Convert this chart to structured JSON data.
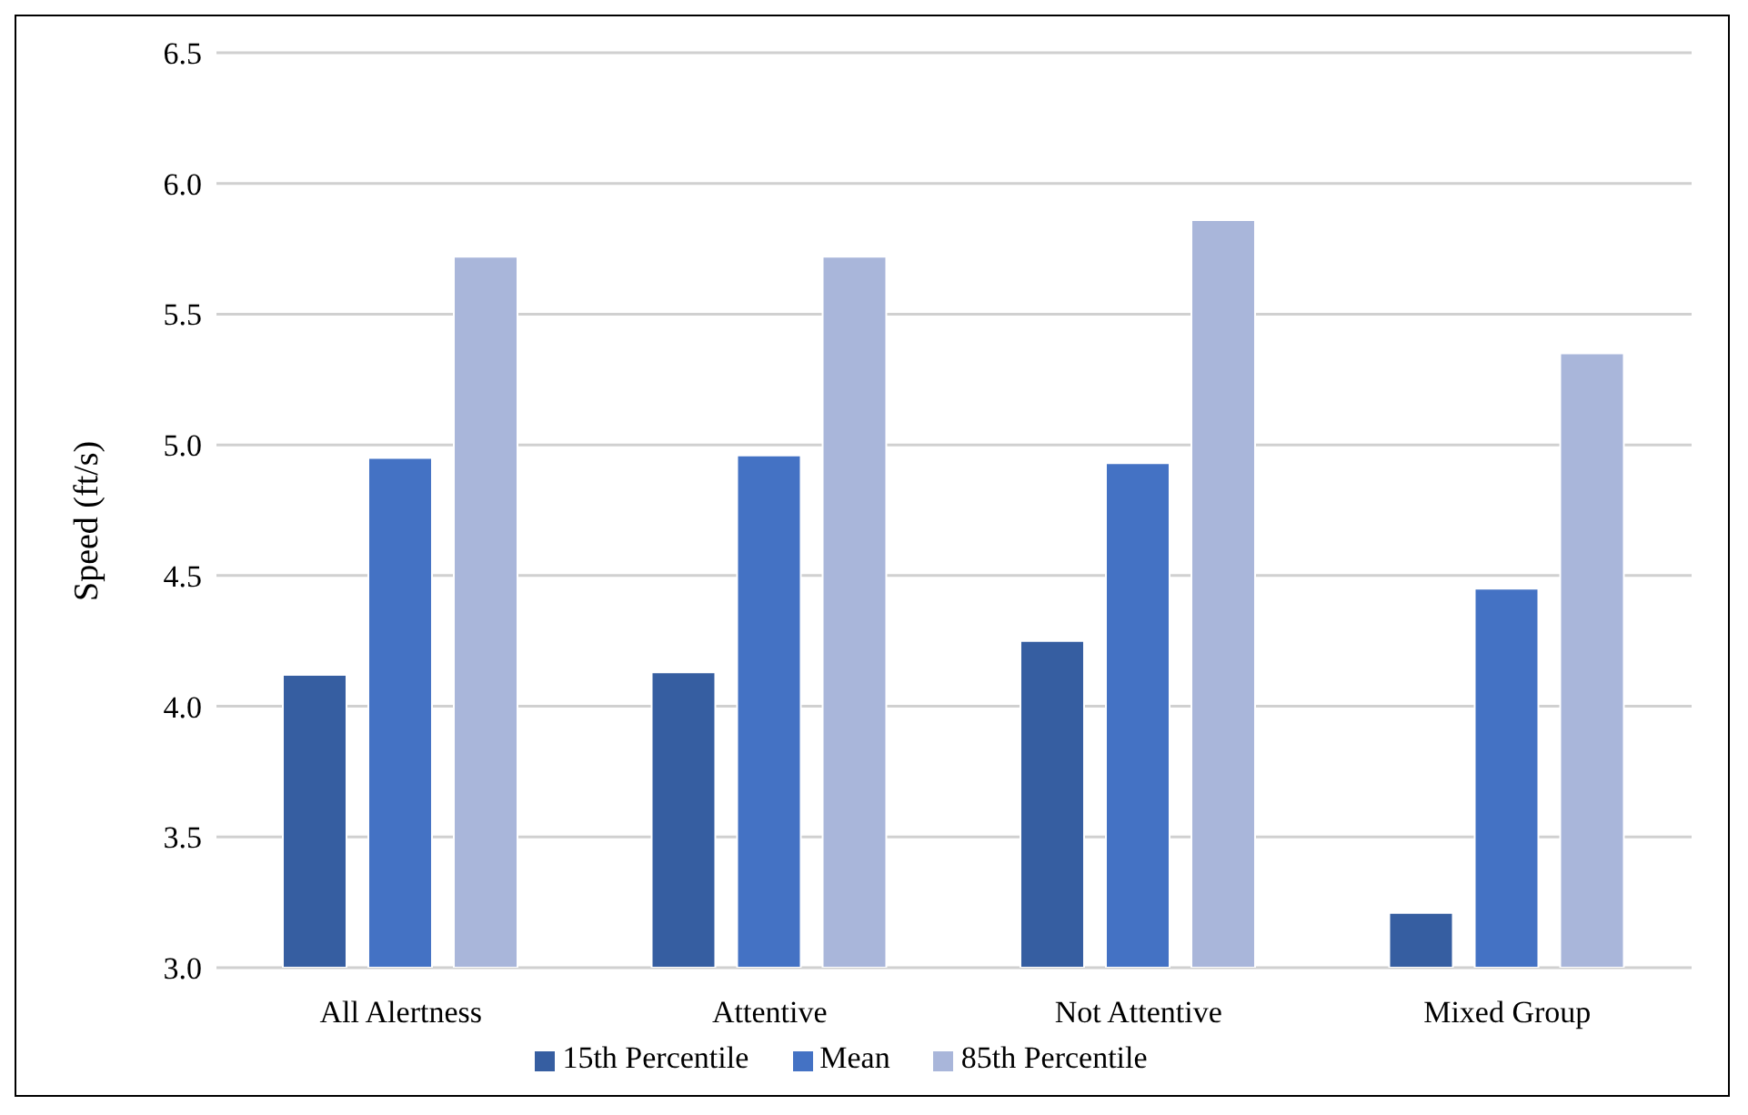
{
  "chart_data": {
    "type": "bar",
    "ylabel": "Speed (ft/s)",
    "categories": [
      "All Alertness",
      "Attentive",
      "Not Attentive",
      "Mixed Group"
    ],
    "series": [
      {
        "name": "15th Percentile",
        "color": "#365ea1",
        "values": [
          4.12,
          4.13,
          4.25,
          3.21
        ]
      },
      {
        "name": "Mean",
        "color": "#4472c4",
        "values": [
          4.95,
          4.96,
          4.93,
          4.45
        ]
      },
      {
        "name": "85th Percentile",
        "color": "#a9b6da",
        "values": [
          5.72,
          5.72,
          5.86,
          5.35
        ]
      }
    ],
    "ylim": [
      3.0,
      6.5
    ],
    "yticks": [
      {
        "value": 3,
        "label": "3.0"
      },
      {
        "value": 3.5,
        "label": "3.5"
      },
      {
        "value": 4,
        "label": "4.0"
      },
      {
        "value": 4.5,
        "label": "4.5"
      },
      {
        "value": 5,
        "label": "5.0"
      },
      {
        "value": 5.5,
        "label": "5.5"
      },
      {
        "value": 6,
        "label": "6.0"
      },
      {
        "value": 6.5,
        "label": "6.5"
      }
    ],
    "grid": "y",
    "legend": "bottom"
  }
}
